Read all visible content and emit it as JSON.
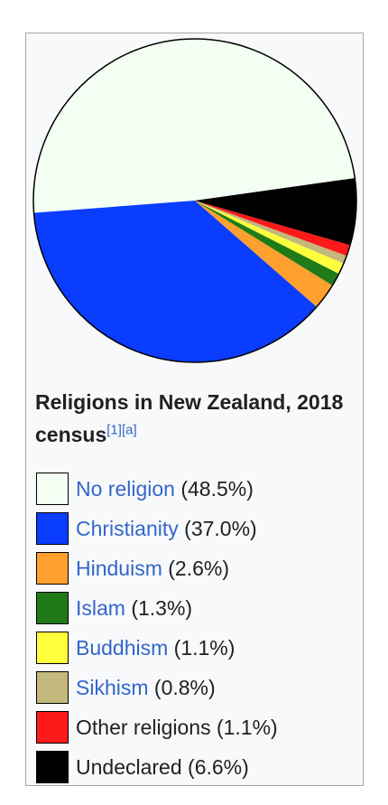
{
  "caption": {
    "title": "Religions in New Zealand, 2018 census",
    "refs": [
      "[1]",
      "[a]"
    ]
  },
  "chart_data": {
    "type": "pie",
    "title": "Religions in New Zealand, 2018 census",
    "slices": [
      {
        "name": "No religion",
        "value": 48.5,
        "label": "(48.5%)",
        "color": "#f3fff3",
        "link": true
      },
      {
        "name": "Christianity",
        "value": 37.0,
        "label": "(37.0%)",
        "color": "#0a3dff",
        "link": true
      },
      {
        "name": "Hinduism",
        "value": 2.6,
        "label": "(2.6%)",
        "color": "#ffa02f",
        "link": true
      },
      {
        "name": "Islam",
        "value": 1.3,
        "label": "(1.3%)",
        "color": "#1f7b17",
        "link": true
      },
      {
        "name": "Buddhism",
        "value": 1.1,
        "label": "(1.1%)",
        "color": "#ffff3d",
        "link": true
      },
      {
        "name": "Sikhism",
        "value": 0.8,
        "label": "(0.8%)",
        "color": "#c3b97c",
        "link": true
      },
      {
        "name": "Other religions",
        "value": 1.1,
        "label": "(1.1%)",
        "color": "#ff1a1a",
        "link": false
      },
      {
        "name": "Undeclared",
        "value": 6.6,
        "label": "(6.6%)",
        "color": "#000000",
        "link": false
      }
    ],
    "start_angle_deg": 8,
    "direction": "counterclockwise",
    "legend_position": "bottom"
  }
}
